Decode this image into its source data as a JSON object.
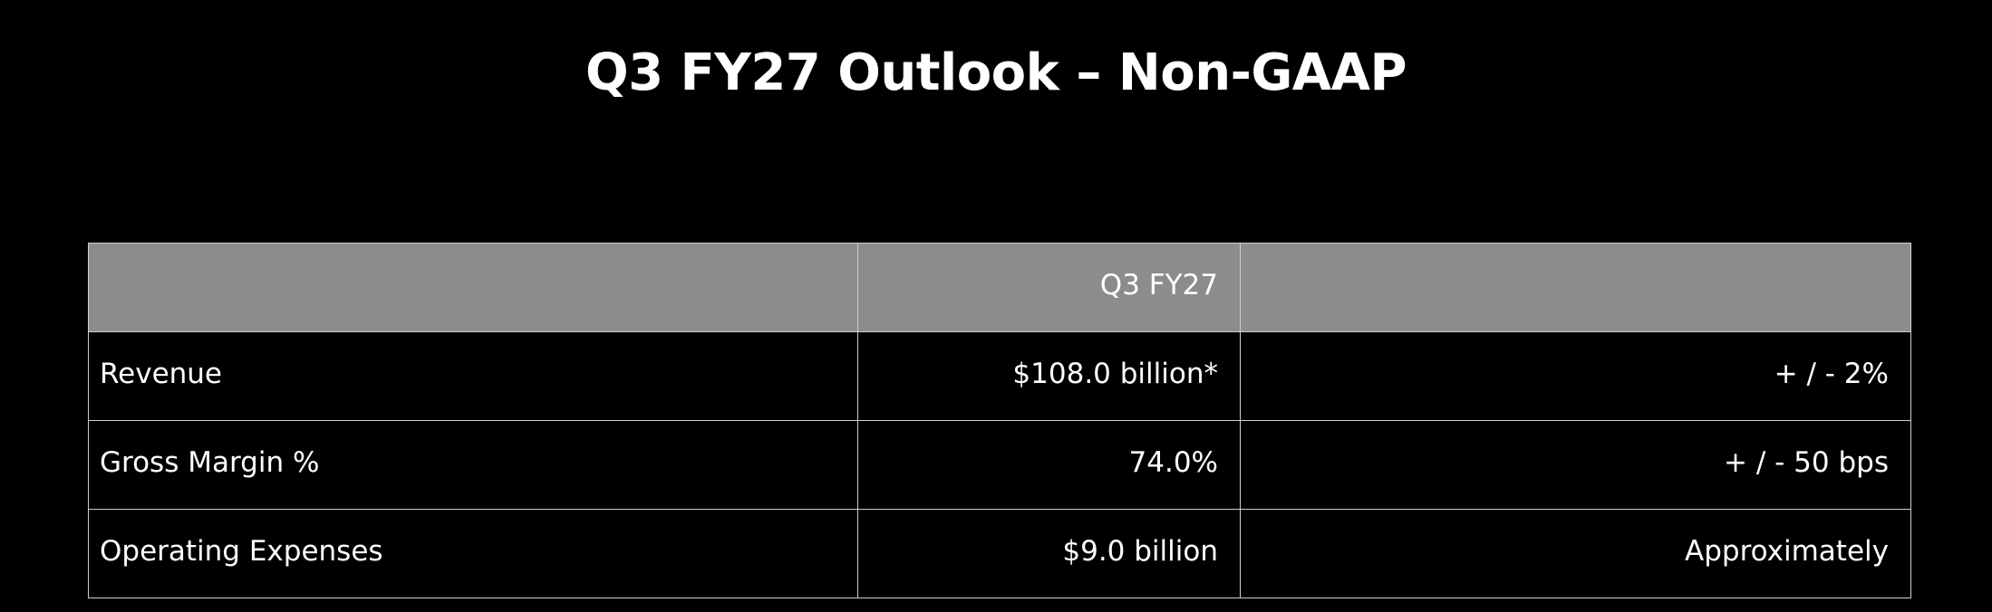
{
  "title": "Q3 FY27 Outlook – Non-GAAP",
  "table": {
    "header": "Q3 FY27",
    "rows": [
      [
        "Revenue",
        "$108.0 billion*",
        "+ / - 2%"
      ],
      [
        "Gross Margin %",
        "74.0%",
        "+ / - 50 bps"
      ],
      [
        "Operating Expenses",
        "$9.0 billion",
        "Approximately"
      ]
    ]
  }
}
